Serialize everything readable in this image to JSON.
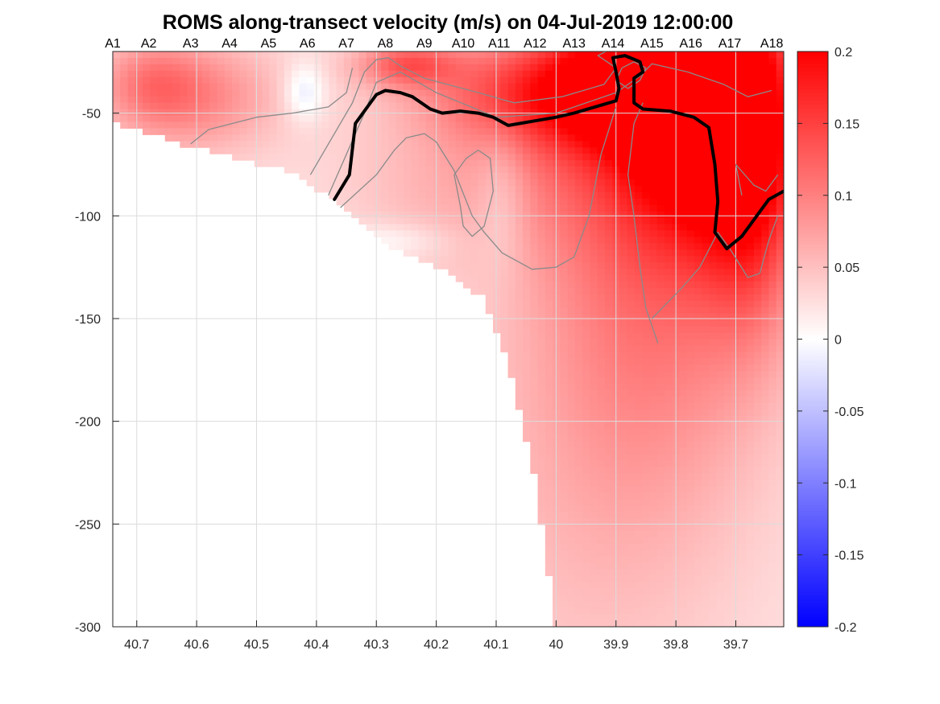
{
  "chart_data": {
    "type": "heatmap",
    "title": "ROMS along-transect velocity (m/s) on 04-Jul-2019 12:00:00",
    "xlabel": "",
    "ylabel": "",
    "xlim": [
      40.74,
      39.62
    ],
    "ylim": [
      -300,
      -20
    ],
    "x_reversed": true,
    "grid": true,
    "x_ticks": [
      40.7,
      40.6,
      40.5,
      40.4,
      40.3,
      40.2,
      40.1,
      40,
      39.9,
      39.8,
      39.7
    ],
    "x_tick_labels": [
      "40.7",
      "40.6",
      "40.5",
      "40.4",
      "40.3",
      "40.2",
      "40.1",
      "40",
      "39.9",
      "39.8",
      "39.7"
    ],
    "y_ticks": [
      -50,
      -100,
      -150,
      -200,
      -250,
      -300
    ],
    "y_tick_labels": [
      "-50",
      "-100",
      "-150",
      "-200",
      "-250",
      "-300"
    ],
    "stations": [
      {
        "label": "A1",
        "lat": 40.74
      },
      {
        "label": "A2",
        "lat": 40.68
      },
      {
        "label": "A3",
        "lat": 40.61
      },
      {
        "label": "A4",
        "lat": 40.545
      },
      {
        "label": "A5",
        "lat": 40.48
      },
      {
        "label": "A6",
        "lat": 40.415
      },
      {
        "label": "A7",
        "lat": 40.35
      },
      {
        "label": "A8",
        "lat": 40.285
      },
      {
        "label": "A9",
        "lat": 40.22
      },
      {
        "label": "A10",
        "lat": 40.155
      },
      {
        "label": "A11",
        "lat": 40.095
      },
      {
        "label": "A12",
        "lat": 40.035
      },
      {
        "label": "A13",
        "lat": 39.97
      },
      {
        "label": "A14",
        "lat": 39.905
      },
      {
        "label": "A15",
        "lat": 39.84
      },
      {
        "label": "A16",
        "lat": 39.775
      },
      {
        "label": "A17",
        "lat": 39.71
      },
      {
        "label": "A18",
        "lat": 39.64
      }
    ],
    "colorbar": {
      "range": [
        -0.2,
        0.2
      ],
      "ticks": [
        0.2,
        0.15,
        0.1,
        0.05,
        0,
        -0.05,
        -0.1,
        -0.15,
        -0.2
      ],
      "tick_labels": [
        "0.2",
        "0.15",
        "0.1",
        "0.05",
        "0",
        "-0.05",
        "-0.1",
        "-0.15",
        "-0.2"
      ],
      "colormap": "blue-white-red",
      "low_color": "#0000ff",
      "mid_color": "#ffffff",
      "high_color": "#ff0000"
    },
    "bottom_depth": [
      {
        "x": 40.74,
        "y": -55
      },
      {
        "x": 40.6,
        "y": -67
      },
      {
        "x": 40.45,
        "y": -78
      },
      {
        "x": 40.37,
        "y": -92
      },
      {
        "x": 40.28,
        "y": -115
      },
      {
        "x": 40.18,
        "y": -128
      },
      {
        "x": 40.12,
        "y": -140
      },
      {
        "x": 40.08,
        "y": -170
      },
      {
        "x": 40.04,
        "y": -220
      },
      {
        "x": 40.0,
        "y": -300
      }
    ],
    "velocity_features": [
      {
        "x": 39.76,
        "y": -45,
        "sigma_x": 0.09,
        "sigma_y": 45,
        "value": 0.19
      },
      {
        "x": 39.67,
        "y": -70,
        "sigma_x": 0.06,
        "sigma_y": 55,
        "value": 0.13
      },
      {
        "x": 39.86,
        "y": -33,
        "sigma_x": 0.1,
        "sigma_y": 22,
        "value": 0.12
      },
      {
        "x": 39.83,
        "y": -130,
        "sigma_x": 0.14,
        "sigma_y": 75,
        "value": 0.07
      },
      {
        "x": 39.95,
        "y": -55,
        "sigma_x": 0.12,
        "sigma_y": 45,
        "value": 0.06
      },
      {
        "x": 40.05,
        "y": -40,
        "sigma_x": 0.14,
        "sigma_y": 18,
        "value": 0.09
      },
      {
        "x": 40.25,
        "y": -26,
        "sigma_x": 0.06,
        "sigma_y": 8,
        "value": 0.09
      },
      {
        "x": 40.6,
        "y": -42,
        "sigma_x": 0.1,
        "sigma_y": 20,
        "value": 0.07
      },
      {
        "x": 40.68,
        "y": -35,
        "sigma_x": 0.06,
        "sigma_y": 15,
        "value": 0.05
      },
      {
        "x": 40.2,
        "y": -85,
        "sigma_x": 0.12,
        "sigma_y": 25,
        "value": 0.03
      },
      {
        "x": 39.95,
        "y": -230,
        "sigma_x": 0.18,
        "sigma_y": 90,
        "value": 0.03
      },
      {
        "x": 40.42,
        "y": -40,
        "sigma_x": 0.025,
        "sigma_y": 10,
        "value": -0.05
      },
      {
        "x": 40.09,
        "y": -90,
        "sigma_x": 0.03,
        "sigma_y": 25,
        "value": -0.03
      },
      {
        "x": 40.28,
        "y": -112,
        "sigma_x": 0.07,
        "sigma_y": 6,
        "value": -0.03
      }
    ],
    "bold_contour": [
      {
        "x": 40.37,
        "y": -92
      },
      {
        "x": 40.345,
        "y": -80
      },
      {
        "x": 40.335,
        "y": -55
      },
      {
        "x": 40.315,
        "y": -47
      },
      {
        "x": 40.3,
        "y": -41
      },
      {
        "x": 40.285,
        "y": -39
      },
      {
        "x": 40.26,
        "y": -40
      },
      {
        "x": 40.24,
        "y": -42
      },
      {
        "x": 40.21,
        "y": -48
      },
      {
        "x": 40.19,
        "y": -50
      },
      {
        "x": 40.16,
        "y": -49
      },
      {
        "x": 40.13,
        "y": -50
      },
      {
        "x": 40.105,
        "y": -52
      },
      {
        "x": 40.08,
        "y": -56
      },
      {
        "x": 40.06,
        "y": -55
      },
      {
        "x": 40.04,
        "y": -54
      },
      {
        "x": 40.0,
        "y": -52
      },
      {
        "x": 39.97,
        "y": -50
      },
      {
        "x": 39.935,
        "y": -47
      },
      {
        "x": 39.9,
        "y": -44
      },
      {
        "x": 39.895,
        "y": -38
      },
      {
        "x": 39.9,
        "y": -30
      },
      {
        "x": 39.905,
        "y": -23
      },
      {
        "x": 39.885,
        "y": -22
      },
      {
        "x": 39.86,
        "y": -25
      },
      {
        "x": 39.855,
        "y": -30
      },
      {
        "x": 39.87,
        "y": -33
      },
      {
        "x": 39.87,
        "y": -45
      },
      {
        "x": 39.855,
        "y": -48
      },
      {
        "x": 39.81,
        "y": -49
      },
      {
        "x": 39.77,
        "y": -52
      },
      {
        "x": 39.745,
        "y": -57
      },
      {
        "x": 39.735,
        "y": -75
      },
      {
        "x": 39.73,
        "y": -93
      },
      {
        "x": 39.735,
        "y": -108
      },
      {
        "x": 39.715,
        "y": -116
      },
      {
        "x": 39.69,
        "y": -110
      },
      {
        "x": 39.665,
        "y": -100
      },
      {
        "x": 39.645,
        "y": -92
      },
      {
        "x": 39.62,
        "y": -88
      }
    ],
    "thin_contours": [
      [
        {
          "x": 40.61,
          "y": -65
        },
        {
          "x": 40.58,
          "y": -58
        },
        {
          "x": 40.5,
          "y": -52
        },
        {
          "x": 40.44,
          "y": -50
        },
        {
          "x": 40.38,
          "y": -47
        },
        {
          "x": 40.35,
          "y": -40
        },
        {
          "x": 40.34,
          "y": -28
        }
      ],
      [
        {
          "x": 40.41,
          "y": -80
        },
        {
          "x": 40.37,
          "y": -60
        },
        {
          "x": 40.34,
          "y": -45
        },
        {
          "x": 40.32,
          "y": -30
        },
        {
          "x": 40.3,
          "y": -24
        },
        {
          "x": 40.28,
          "y": -23
        },
        {
          "x": 40.26,
          "y": -27
        },
        {
          "x": 40.22,
          "y": -33
        },
        {
          "x": 40.13,
          "y": -40
        },
        {
          "x": 40.07,
          "y": -45
        },
        {
          "x": 39.99,
          "y": -42
        },
        {
          "x": 39.92,
          "y": -36
        },
        {
          "x": 39.9,
          "y": -28
        },
        {
          "x": 39.93,
          "y": -22
        },
        {
          "x": 39.91,
          "y": -19
        }
      ],
      [
        {
          "x": 40.38,
          "y": -90
        },
        {
          "x": 40.35,
          "y": -70
        },
        {
          "x": 40.32,
          "y": -50
        },
        {
          "x": 40.3,
          "y": -35
        },
        {
          "x": 40.26,
          "y": -30
        },
        {
          "x": 40.2,
          "y": -40
        },
        {
          "x": 40.1,
          "y": -52
        },
        {
          "x": 40.0,
          "y": -50
        },
        {
          "x": 39.9,
          "y": -40
        },
        {
          "x": 39.86,
          "y": -32
        },
        {
          "x": 39.84,
          "y": -26
        },
        {
          "x": 39.78,
          "y": -30
        },
        {
          "x": 39.72,
          "y": -36
        },
        {
          "x": 39.68,
          "y": -42
        },
        {
          "x": 39.64,
          "y": -39
        }
      ],
      [
        {
          "x": 40.36,
          "y": -96
        },
        {
          "x": 40.3,
          "y": -80
        },
        {
          "x": 40.27,
          "y": -68
        },
        {
          "x": 40.25,
          "y": -62
        },
        {
          "x": 40.22,
          "y": -60
        },
        {
          "x": 40.2,
          "y": -64
        },
        {
          "x": 40.17,
          "y": -78
        },
        {
          "x": 40.14,
          "y": -100
        },
        {
          "x": 40.12,
          "y": -108
        },
        {
          "x": 40.09,
          "y": -118
        },
        {
          "x": 40.04,
          "y": -126
        },
        {
          "x": 40.0,
          "y": -125
        },
        {
          "x": 39.97,
          "y": -120
        },
        {
          "x": 39.945,
          "y": -100
        },
        {
          "x": 39.925,
          "y": -70
        },
        {
          "x": 39.9,
          "y": -47
        }
      ],
      [
        {
          "x": 40.16,
          "y": -95
        },
        {
          "x": 40.17,
          "y": -80
        },
        {
          "x": 40.15,
          "y": -72
        },
        {
          "x": 40.13,
          "y": -68
        },
        {
          "x": 40.11,
          "y": -72
        },
        {
          "x": 40.105,
          "y": -88
        },
        {
          "x": 40.12,
          "y": -105
        },
        {
          "x": 40.14,
          "y": -110
        },
        {
          "x": 40.155,
          "y": -105
        },
        {
          "x": 40.16,
          "y": -95
        }
      ],
      [
        {
          "x": 39.83,
          "y": -162
        },
        {
          "x": 39.85,
          "y": -145
        },
        {
          "x": 39.86,
          "y": -125
        },
        {
          "x": 39.87,
          "y": -100
        },
        {
          "x": 39.88,
          "y": -80
        },
        {
          "x": 39.87,
          "y": -55
        },
        {
          "x": 39.855,
          "y": -45
        }
      ],
      [
        {
          "x": 39.84,
          "y": -150
        },
        {
          "x": 39.79,
          "y": -135
        },
        {
          "x": 39.76,
          "y": -125
        },
        {
          "x": 39.73,
          "y": -108
        },
        {
          "x": 39.71,
          "y": -116
        },
        {
          "x": 39.68,
          "y": -130
        },
        {
          "x": 39.66,
          "y": -128
        },
        {
          "x": 39.645,
          "y": -112
        },
        {
          "x": 39.63,
          "y": -100
        }
      ],
      [
        {
          "x": 39.69,
          "y": -90
        },
        {
          "x": 39.7,
          "y": -75
        },
        {
          "x": 39.67,
          "y": -85
        },
        {
          "x": 39.65,
          "y": -88
        },
        {
          "x": 39.63,
          "y": -80
        }
      ],
      [
        {
          "x": 39.87,
          "y": -25
        },
        {
          "x": 39.89,
          "y": -28
        },
        {
          "x": 39.9,
          "y": -34
        },
        {
          "x": 39.88,
          "y": -38
        },
        {
          "x": 39.86,
          "y": -34
        },
        {
          "x": 39.85,
          "y": -28
        },
        {
          "x": 39.87,
          "y": -25
        }
      ]
    ]
  }
}
